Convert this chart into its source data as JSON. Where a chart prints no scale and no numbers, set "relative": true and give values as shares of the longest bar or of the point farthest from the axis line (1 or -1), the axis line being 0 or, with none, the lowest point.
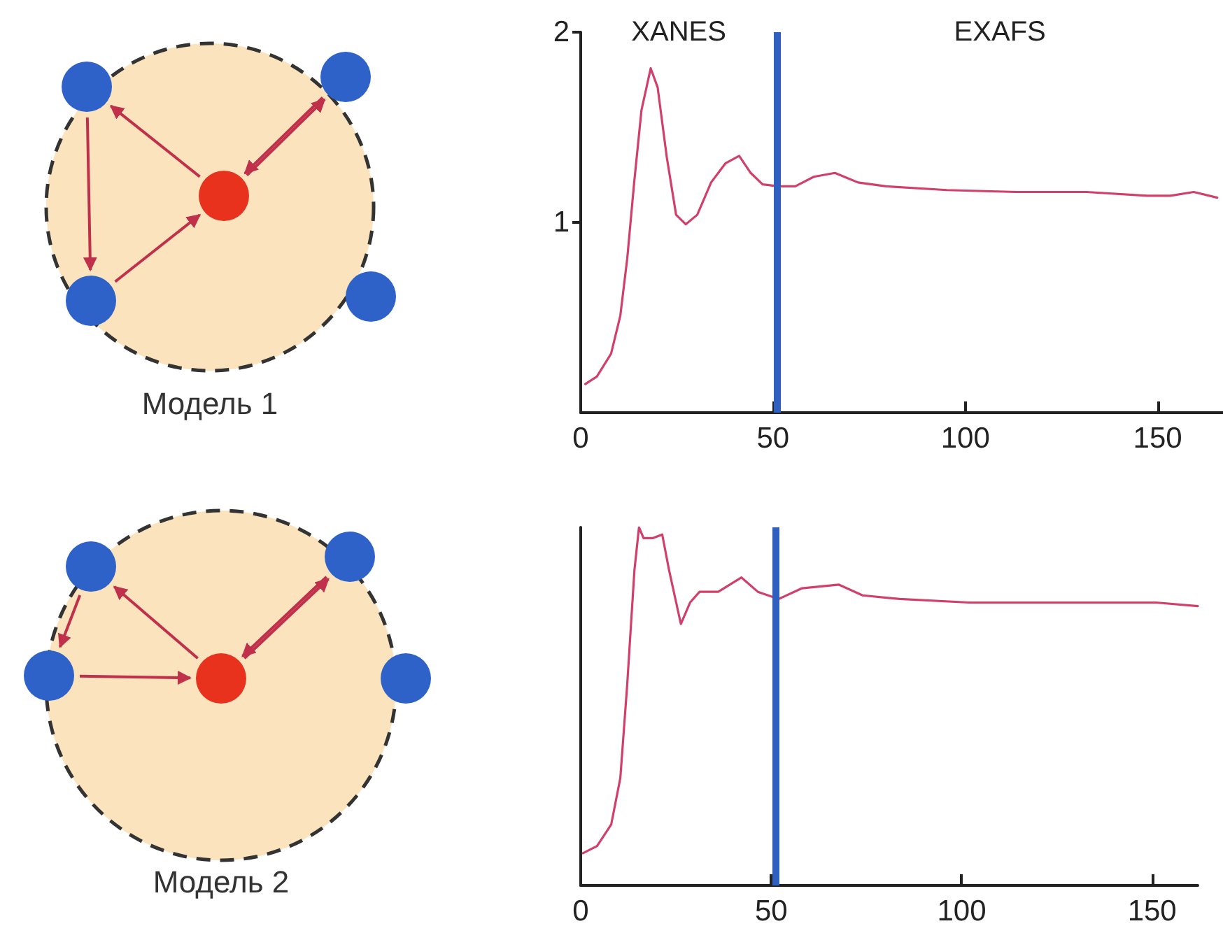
{
  "chart_data": [
    {
      "type": "other",
      "annotations": [
        "Модель 1",
        "Модель 2"
      ]
    },
    {
      "type": "line",
      "x": [
        1.2,
        4.2,
        7.9,
        10.3,
        12.1,
        13.9,
        15.8,
        18.2,
        20,
        22.4,
        24.8,
        27.3,
        30.3,
        33.9,
        37.6,
        41.2,
        44.2,
        47.3,
        51.5,
        55.8,
        60.6,
        66.1,
        72.1,
        79.4,
        95.2,
        113.3,
        131.5,
        147.3,
        153.3,
        159.4,
        165.5
      ],
      "series": [
        {
          "color": "#d0406a",
          "values": [
            0.15,
            0.19,
            0.31,
            0.51,
            0.81,
            1.21,
            1.59,
            1.81,
            1.71,
            1.34,
            1.04,
            0.99,
            1.04,
            1.21,
            1.31,
            1.35,
            1.26,
            1.2,
            1.19,
            1.19,
            1.24,
            1.26,
            1.21,
            1.19,
            1.17,
            1.16,
            1.16,
            1.14,
            1.14,
            1.16,
            1.13
          ]
        }
      ],
      "xlim": [
        0,
        167
      ],
      "xticks": [
        0,
        50,
        100,
        150
      ],
      "ylim": [
        0,
        2
      ],
      "yticks": [
        1,
        2
      ],
      "ref_lines": [
        {
          "axis": "x",
          "value": 51,
          "color": "#2f5fbf"
        }
      ],
      "annotations": [
        "XANES",
        "EXAFS"
      ]
    },
    {
      "type": "line",
      "relative": true,
      "x": [
        0.6,
        4.3,
        8,
        10.4,
        12.2,
        14.1,
        15.3,
        16.5,
        19,
        21.4,
        23.2,
        26.3,
        28.7,
        31.2,
        36.1,
        42.2,
        46.5,
        52,
        58.1,
        67.8,
        74,
        83.7,
        102,
        126.5,
        151,
        162
      ],
      "series": [
        {
          "color": "#d0406a",
          "values": [
            0.09,
            0.11,
            0.17,
            0.3,
            0.56,
            0.88,
            1,
            0.97,
            0.97,
            0.98,
            0.88,
            0.73,
            0.79,
            0.82,
            0.82,
            0.86,
            0.82,
            0.8,
            0.83,
            0.84,
            0.81,
            0.8,
            0.79,
            0.79,
            0.79,
            0.78
          ]
        }
      ],
      "xlim": [
        0,
        162
      ],
      "xticks": [
        0,
        50,
        100,
        150
      ],
      "ref_lines": [
        {
          "axis": "x",
          "value": 51,
          "color": "#2f5fbf"
        }
      ]
    }
  ]
}
